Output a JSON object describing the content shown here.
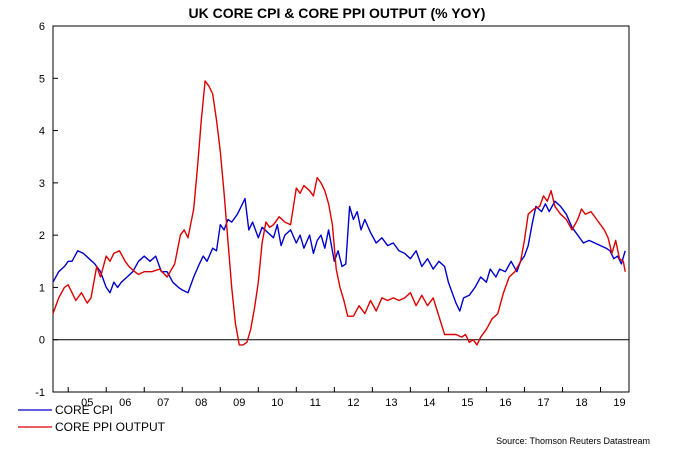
{
  "chart_data": {
    "type": "line",
    "title": "UK CORE CPI & CORE PPI OUTPUT (% YOY)",
    "xlabel": "",
    "ylabel": "",
    "x_range": [
      2004.6,
      2019.75
    ],
    "ylim": [
      -1,
      6
    ],
    "yticks": [
      -1,
      0,
      1,
      2,
      3,
      4,
      5,
      6
    ],
    "yticklabels": [
      "-1",
      "0",
      "1",
      "2",
      "3",
      "4",
      "5",
      "6"
    ],
    "xticklabels": [
      {
        "label": "05",
        "x": 2005.5
      },
      {
        "label": "06",
        "x": 2006.5
      },
      {
        "label": "07",
        "x": 2007.5
      },
      {
        "label": "08",
        "x": 2008.5
      },
      {
        "label": "09",
        "x": 2009.5
      },
      {
        "label": "10",
        "x": 2010.5
      },
      {
        "label": "11",
        "x": 2011.5
      },
      {
        "label": "12",
        "x": 2012.5
      },
      {
        "label": "13",
        "x": 2013.5
      },
      {
        "label": "14",
        "x": 2014.5
      },
      {
        "label": "15",
        "x": 2015.5
      },
      {
        "label": "16",
        "x": 2016.5
      },
      {
        "label": "17",
        "x": 2017.5
      },
      {
        "label": "18",
        "x": 2018.5
      },
      {
        "label": "19",
        "x": 2019.5
      }
    ],
    "year_boundaries": [
      2005,
      2006,
      2007,
      2008,
      2009,
      2010,
      2011,
      2012,
      2013,
      2014,
      2015,
      2016,
      2017,
      2018,
      2019
    ],
    "zero_line": 0,
    "series": [
      {
        "name": "CORE CPI",
        "color": "#0000cc",
        "points": [
          [
            2004.6,
            1.1
          ],
          [
            2004.75,
            1.3
          ],
          [
            2004.9,
            1.4
          ],
          [
            2005.0,
            1.5
          ],
          [
            2005.1,
            1.5
          ],
          [
            2005.25,
            1.7
          ],
          [
            2005.4,
            1.65
          ],
          [
            2005.55,
            1.55
          ],
          [
            2005.7,
            1.45
          ],
          [
            2005.85,
            1.3
          ],
          [
            2006.0,
            1.0
          ],
          [
            2006.1,
            0.9
          ],
          [
            2006.2,
            1.1
          ],
          [
            2006.3,
            1.0
          ],
          [
            2006.4,
            1.1
          ],
          [
            2006.55,
            1.2
          ],
          [
            2006.7,
            1.3
          ],
          [
            2006.85,
            1.5
          ],
          [
            2007.0,
            1.6
          ],
          [
            2007.15,
            1.5
          ],
          [
            2007.3,
            1.6
          ],
          [
            2007.45,
            1.3
          ],
          [
            2007.6,
            1.3
          ],
          [
            2007.75,
            1.1
          ],
          [
            2007.9,
            1.0
          ],
          [
            2008.0,
            0.95
          ],
          [
            2008.15,
            0.9
          ],
          [
            2008.3,
            1.2
          ],
          [
            2008.45,
            1.45
          ],
          [
            2008.55,
            1.6
          ],
          [
            2008.65,
            1.5
          ],
          [
            2008.8,
            1.75
          ],
          [
            2008.9,
            1.7
          ],
          [
            2009.0,
            2.2
          ],
          [
            2009.1,
            2.1
          ],
          [
            2009.2,
            2.3
          ],
          [
            2009.3,
            2.25
          ],
          [
            2009.45,
            2.4
          ],
          [
            2009.55,
            2.55
          ],
          [
            2009.65,
            2.7
          ],
          [
            2009.75,
            2.1
          ],
          [
            2009.85,
            2.25
          ],
          [
            2010.0,
            1.95
          ],
          [
            2010.1,
            2.15
          ],
          [
            2010.25,
            2.05
          ],
          [
            2010.4,
            1.95
          ],
          [
            2010.5,
            2.2
          ],
          [
            2010.6,
            1.8
          ],
          [
            2010.7,
            2.0
          ],
          [
            2010.85,
            2.1
          ],
          [
            2011.0,
            1.85
          ],
          [
            2011.1,
            2.0
          ],
          [
            2011.2,
            1.75
          ],
          [
            2011.35,
            2.0
          ],
          [
            2011.45,
            1.65
          ],
          [
            2011.55,
            1.9
          ],
          [
            2011.65,
            2.0
          ],
          [
            2011.75,
            1.75
          ],
          [
            2011.85,
            2.1
          ],
          [
            2012.0,
            1.5
          ],
          [
            2012.1,
            1.7
          ],
          [
            2012.2,
            1.4
          ],
          [
            2012.3,
            1.45
          ],
          [
            2012.4,
            2.55
          ],
          [
            2012.5,
            2.3
          ],
          [
            2012.6,
            2.45
          ],
          [
            2012.7,
            2.1
          ],
          [
            2012.8,
            2.3
          ],
          [
            2012.95,
            2.05
          ],
          [
            2013.1,
            1.85
          ],
          [
            2013.25,
            1.95
          ],
          [
            2013.4,
            1.8
          ],
          [
            2013.55,
            1.85
          ],
          [
            2013.7,
            1.7
          ],
          [
            2013.85,
            1.65
          ],
          [
            2014.0,
            1.55
          ],
          [
            2014.15,
            1.7
          ],
          [
            2014.3,
            1.4
          ],
          [
            2014.45,
            1.55
          ],
          [
            2014.6,
            1.35
          ],
          [
            2014.75,
            1.5
          ],
          [
            2014.9,
            1.4
          ],
          [
            2015.0,
            1.1
          ],
          [
            2015.1,
            0.9
          ],
          [
            2015.2,
            0.7
          ],
          [
            2015.3,
            0.55
          ],
          [
            2015.4,
            0.8
          ],
          [
            2015.55,
            0.85
          ],
          [
            2015.7,
            1.0
          ],
          [
            2015.85,
            1.2
          ],
          [
            2016.0,
            1.1
          ],
          [
            2016.1,
            1.35
          ],
          [
            2016.25,
            1.2
          ],
          [
            2016.35,
            1.35
          ],
          [
            2016.5,
            1.3
          ],
          [
            2016.65,
            1.5
          ],
          [
            2016.8,
            1.3
          ],
          [
            2016.9,
            1.5
          ],
          [
            2017.0,
            1.6
          ],
          [
            2017.1,
            1.8
          ],
          [
            2017.2,
            2.2
          ],
          [
            2017.3,
            2.55
          ],
          [
            2017.45,
            2.45
          ],
          [
            2017.55,
            2.6
          ],
          [
            2017.65,
            2.45
          ],
          [
            2017.8,
            2.65
          ],
          [
            2017.95,
            2.55
          ],
          [
            2018.1,
            2.4
          ],
          [
            2018.25,
            2.15
          ],
          [
            2018.4,
            2.0
          ],
          [
            2018.55,
            1.85
          ],
          [
            2018.7,
            1.9
          ],
          [
            2018.85,
            1.85
          ],
          [
            2019.0,
            1.8
          ],
          [
            2019.15,
            1.75
          ],
          [
            2019.25,
            1.7
          ],
          [
            2019.35,
            1.55
          ],
          [
            2019.45,
            1.6
          ],
          [
            2019.55,
            1.45
          ],
          [
            2019.65,
            1.7
          ]
        ]
      },
      {
        "name": "CORE PPI OUTPUT",
        "color": "#dd0000",
        "points": [
          [
            2004.6,
            0.5
          ],
          [
            2004.75,
            0.8
          ],
          [
            2004.9,
            1.0
          ],
          [
            2005.0,
            1.05
          ],
          [
            2005.1,
            0.9
          ],
          [
            2005.2,
            0.75
          ],
          [
            2005.35,
            0.9
          ],
          [
            2005.5,
            0.7
          ],
          [
            2005.6,
            0.8
          ],
          [
            2005.75,
            1.4
          ],
          [
            2005.85,
            1.2
          ],
          [
            2006.0,
            1.6
          ],
          [
            2006.1,
            1.5
          ],
          [
            2006.2,
            1.65
          ],
          [
            2006.35,
            1.7
          ],
          [
            2006.5,
            1.5
          ],
          [
            2006.6,
            1.4
          ],
          [
            2006.75,
            1.3
          ],
          [
            2006.85,
            1.25
          ],
          [
            2007.0,
            1.3
          ],
          [
            2007.2,
            1.3
          ],
          [
            2007.4,
            1.35
          ],
          [
            2007.6,
            1.2
          ],
          [
            2007.8,
            1.45
          ],
          [
            2007.95,
            2.0
          ],
          [
            2008.05,
            2.1
          ],
          [
            2008.15,
            1.95
          ],
          [
            2008.3,
            2.5
          ],
          [
            2008.4,
            3.3
          ],
          [
            2008.5,
            4.2
          ],
          [
            2008.6,
            4.95
          ],
          [
            2008.7,
            4.85
          ],
          [
            2008.8,
            4.7
          ],
          [
            2008.9,
            4.2
          ],
          [
            2009.0,
            3.6
          ],
          [
            2009.1,
            2.8
          ],
          [
            2009.2,
            1.9
          ],
          [
            2009.3,
            1.0
          ],
          [
            2009.4,
            0.3
          ],
          [
            2009.5,
            -0.1
          ],
          [
            2009.6,
            -0.1
          ],
          [
            2009.7,
            -0.05
          ],
          [
            2009.8,
            0.2
          ],
          [
            2009.9,
            0.6
          ],
          [
            2010.0,
            1.1
          ],
          [
            2010.1,
            1.85
          ],
          [
            2010.2,
            2.25
          ],
          [
            2010.3,
            2.15
          ],
          [
            2010.4,
            2.2
          ],
          [
            2010.55,
            2.35
          ],
          [
            2010.7,
            2.25
          ],
          [
            2010.85,
            2.2
          ],
          [
            2011.0,
            2.9
          ],
          [
            2011.1,
            2.8
          ],
          [
            2011.2,
            2.95
          ],
          [
            2011.35,
            2.85
          ],
          [
            2011.45,
            2.75
          ],
          [
            2011.55,
            3.1
          ],
          [
            2011.65,
            3.0
          ],
          [
            2011.75,
            2.85
          ],
          [
            2011.85,
            2.6
          ],
          [
            2011.95,
            2.2
          ],
          [
            2012.05,
            1.35
          ],
          [
            2012.15,
            1.0
          ],
          [
            2012.25,
            0.75
          ],
          [
            2012.35,
            0.45
          ],
          [
            2012.5,
            0.45
          ],
          [
            2012.65,
            0.65
          ],
          [
            2012.8,
            0.5
          ],
          [
            2012.95,
            0.75
          ],
          [
            2013.1,
            0.55
          ],
          [
            2013.25,
            0.8
          ],
          [
            2013.4,
            0.75
          ],
          [
            2013.55,
            0.8
          ],
          [
            2013.7,
            0.75
          ],
          [
            2013.85,
            0.8
          ],
          [
            2014.0,
            0.9
          ],
          [
            2014.15,
            0.65
          ],
          [
            2014.3,
            0.85
          ],
          [
            2014.45,
            0.65
          ],
          [
            2014.6,
            0.8
          ],
          [
            2014.75,
            0.45
          ],
          [
            2014.9,
            0.1
          ],
          [
            2015.05,
            0.1
          ],
          [
            2015.2,
            0.1
          ],
          [
            2015.35,
            0.05
          ],
          [
            2015.45,
            0.1
          ],
          [
            2015.55,
            -0.05
          ],
          [
            2015.65,
            0.0
          ],
          [
            2015.75,
            -0.1
          ],
          [
            2015.85,
            0.05
          ],
          [
            2016.0,
            0.2
          ],
          [
            2016.15,
            0.4
          ],
          [
            2016.3,
            0.5
          ],
          [
            2016.45,
            0.9
          ],
          [
            2016.6,
            1.2
          ],
          [
            2016.75,
            1.3
          ],
          [
            2016.9,
            1.5
          ],
          [
            2017.0,
            1.9
          ],
          [
            2017.1,
            2.4
          ],
          [
            2017.25,
            2.5
          ],
          [
            2017.4,
            2.55
          ],
          [
            2017.5,
            2.75
          ],
          [
            2017.6,
            2.65
          ],
          [
            2017.7,
            2.85
          ],
          [
            2017.8,
            2.55
          ],
          [
            2017.95,
            2.4
          ],
          [
            2018.1,
            2.3
          ],
          [
            2018.25,
            2.1
          ],
          [
            2018.4,
            2.3
          ],
          [
            2018.5,
            2.5
          ],
          [
            2018.6,
            2.4
          ],
          [
            2018.75,
            2.45
          ],
          [
            2018.9,
            2.3
          ],
          [
            2019.0,
            2.2
          ],
          [
            2019.1,
            2.1
          ],
          [
            2019.2,
            1.95
          ],
          [
            2019.3,
            1.65
          ],
          [
            2019.4,
            1.9
          ],
          [
            2019.5,
            1.55
          ],
          [
            2019.6,
            1.5
          ],
          [
            2019.65,
            1.3
          ]
        ]
      }
    ],
    "legend": {
      "placement": "bottom-left",
      "entries": [
        "CORE CPI",
        "CORE PPI OUTPUT"
      ]
    },
    "source": "Source: Thomson Reuters Datastream"
  }
}
